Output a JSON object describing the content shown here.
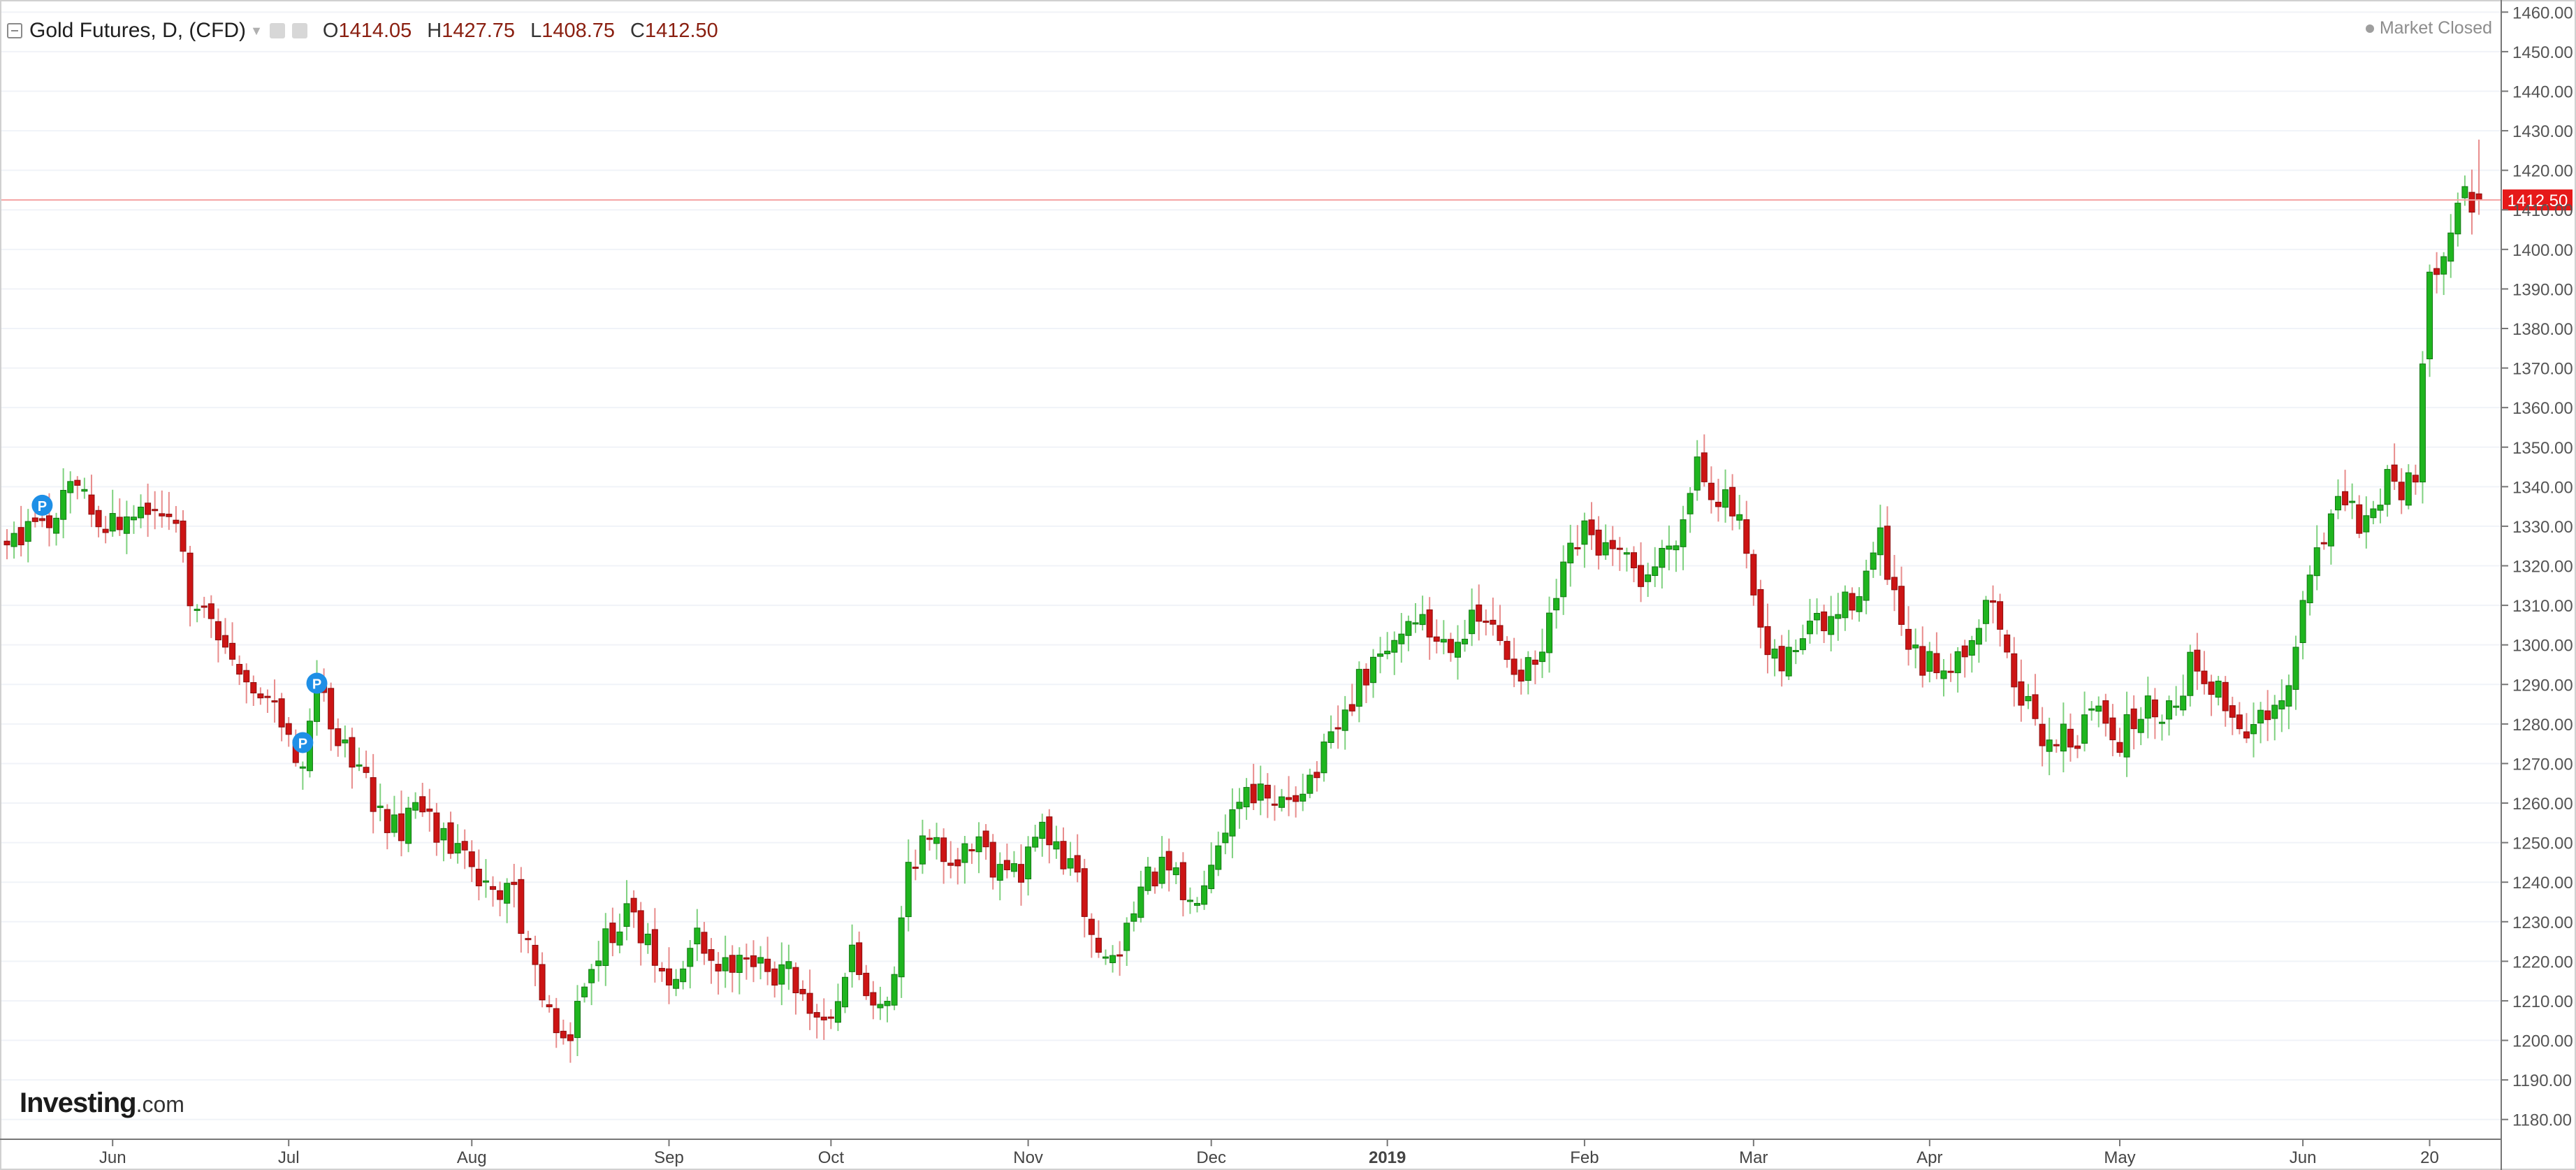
{
  "header": {
    "symbol": "Gold Futures, D, (CFD)",
    "open_label": "O",
    "open": "1414.05",
    "high_label": "H",
    "high": "1427.75",
    "low_label": "L",
    "low": "1408.75",
    "close_label": "C",
    "close": "1412.50",
    "market_status": "Market Closed"
  },
  "brand": {
    "name": "Investing",
    "suffix": ".com"
  },
  "colors": {
    "up": "#1fb51f",
    "down": "#cc1414",
    "up_wick": "#7fd17f",
    "down_wick": "#e88c8c",
    "last_price": "#e61919",
    "axis_text": "#555555",
    "grid": "#f0f3f8",
    "marker": "#1e8fe6"
  },
  "chart_data": {
    "type": "candlestick",
    "title": "Gold Futures, D, (CFD)",
    "xlabel": "",
    "ylabel": "",
    "ylim": [
      1175,
      1462
    ],
    "yticks": [
      1180,
      1190,
      1200,
      1210,
      1220,
      1230,
      1240,
      1250,
      1260,
      1270,
      1280,
      1290,
      1300,
      1310,
      1320,
      1330,
      1340,
      1350,
      1360,
      1370,
      1380,
      1390,
      1400,
      1410,
      1420,
      1430,
      1440,
      1450,
      1460
    ],
    "ytick_labels": [
      "1180.00",
      "1190.00",
      "1200.00",
      "1210.00",
      "1220.00",
      "1230.00",
      "1240.00",
      "1250.00",
      "1260.00",
      "1270.00",
      "1280.00",
      "1290.00",
      "1300.00",
      "1310.00",
      "1320.00",
      "1330.00",
      "1340.00",
      "1350.00",
      "1360.00",
      "1370.00",
      "1380.00",
      "1390.00",
      "1400.00",
      "1410.00",
      "1420.00",
      "1430.00",
      "1440.00",
      "1450.00",
      "1460.00"
    ],
    "xticks": [
      {
        "label": "Jun",
        "bar": 15
      },
      {
        "label": "Jul",
        "bar": 40
      },
      {
        "label": "Aug",
        "bar": 66
      },
      {
        "label": "Sep",
        "bar": 94
      },
      {
        "label": "Oct",
        "bar": 117
      },
      {
        "label": "Nov",
        "bar": 145
      },
      {
        "label": "Dec",
        "bar": 171
      },
      {
        "label": "2019",
        "bar": 196,
        "bold": true
      },
      {
        "label": "Feb",
        "bar": 224
      },
      {
        "label": "Mar",
        "bar": 248
      },
      {
        "label": "Apr",
        "bar": 273
      },
      {
        "label": "May",
        "bar": 300
      },
      {
        "label": "Jun",
        "bar": 326
      },
      {
        "label": "20",
        "bar": 344
      }
    ],
    "last_price": 1412.5,
    "last_price_label": "1412.50",
    "markers": [
      {
        "label": "P",
        "bar": 5,
        "price": 1330
      },
      {
        "label": "P",
        "bar": 44,
        "price": 1285
      },
      {
        "label": "P",
        "bar": 42,
        "price": 1270
      }
    ],
    "anchors": [
      [
        0,
        1326
      ],
      [
        3,
        1328
      ],
      [
        5,
        1329
      ],
      [
        8,
        1336
      ],
      [
        10,
        1339
      ],
      [
        12,
        1333
      ],
      [
        14,
        1332
      ],
      [
        16,
        1331
      ],
      [
        18,
        1332
      ],
      [
        20,
        1333
      ],
      [
        22,
        1332
      ],
      [
        24,
        1334
      ],
      [
        26,
        1313
      ],
      [
        28,
        1308
      ],
      [
        30,
        1303
      ],
      [
        32,
        1296
      ],
      [
        34,
        1292
      ],
      [
        36,
        1286
      ],
      [
        38,
        1282
      ],
      [
        40,
        1278
      ],
      [
        42,
        1267
      ],
      [
        44,
        1287
      ],
      [
        46,
        1281
      ],
      [
        48,
        1275
      ],
      [
        50,
        1270
      ],
      [
        52,
        1260
      ],
      [
        54,
        1256
      ],
      [
        56,
        1254
      ],
      [
        58,
        1257
      ],
      [
        60,
        1256
      ],
      [
        62,
        1251
      ],
      [
        64,
        1248
      ],
      [
        66,
        1242
      ],
      [
        68,
        1237
      ],
      [
        70,
        1238
      ],
      [
        72,
        1238
      ],
      [
        74,
        1222
      ],
      [
        76,
        1214
      ],
      [
        78,
        1200
      ],
      [
        80,
        1203
      ],
      [
        82,
        1215
      ],
      [
        84,
        1222
      ],
      [
        86,
        1228
      ],
      [
        88,
        1234
      ],
      [
        90,
        1226
      ],
      [
        92,
        1220
      ],
      [
        94,
        1213
      ],
      [
        96,
        1218
      ],
      [
        98,
        1226
      ],
      [
        100,
        1221
      ],
      [
        102,
        1218
      ],
      [
        104,
        1224
      ],
      [
        106,
        1220
      ],
      [
        108,
        1216
      ],
      [
        110,
        1219
      ],
      [
        112,
        1215
      ],
      [
        114,
        1209
      ],
      [
        116,
        1205
      ],
      [
        118,
        1212
      ],
      [
        120,
        1222
      ],
      [
        122,
        1213
      ],
      [
        124,
        1210
      ],
      [
        126,
        1215
      ],
      [
        128,
        1245
      ],
      [
        130,
        1250
      ],
      [
        132,
        1248
      ],
      [
        134,
        1247
      ],
      [
        136,
        1248
      ],
      [
        138,
        1252
      ],
      [
        140,
        1245
      ],
      [
        142,
        1246
      ],
      [
        144,
        1240
      ],
      [
        146,
        1254
      ],
      [
        148,
        1250
      ],
      [
        150,
        1246
      ],
      [
        152,
        1240
      ],
      [
        154,
        1226
      ],
      [
        156,
        1220
      ],
      [
        158,
        1222
      ],
      [
        160,
        1236
      ],
      [
        162,
        1240
      ],
      [
        164,
        1243
      ],
      [
        166,
        1240
      ],
      [
        168,
        1234
      ],
      [
        170,
        1243
      ],
      [
        172,
        1252
      ],
      [
        174,
        1258
      ],
      [
        176,
        1265
      ],
      [
        178,
        1262
      ],
      [
        180,
        1257
      ],
      [
        182,
        1262
      ],
      [
        184,
        1265
      ],
      [
        186,
        1268
      ],
      [
        188,
        1275
      ],
      [
        190,
        1282
      ],
      [
        192,
        1290
      ],
      [
        194,
        1294
      ],
      [
        196,
        1298
      ],
      [
        198,
        1304
      ],
      [
        200,
        1308
      ],
      [
        202,
        1303
      ],
      [
        204,
        1301
      ],
      [
        206,
        1303
      ],
      [
        208,
        1305
      ],
      [
        210,
        1306
      ],
      [
        212,
        1300
      ],
      [
        214,
        1295
      ],
      [
        216,
        1293
      ],
      [
        218,
        1297
      ],
      [
        220,
        1312
      ],
      [
        222,
        1322
      ],
      [
        224,
        1328
      ],
      [
        226,
        1325
      ],
      [
        228,
        1322
      ],
      [
        230,
        1320
      ],
      [
        232,
        1317
      ],
      [
        234,
        1320
      ],
      [
        236,
        1326
      ],
      [
        238,
        1332
      ],
      [
        240,
        1348
      ],
      [
        242,
        1340
      ],
      [
        244,
        1336
      ],
      [
        246,
        1330
      ],
      [
        248,
        1310
      ],
      [
        250,
        1296
      ],
      [
        252,
        1294
      ],
      [
        254,
        1300
      ],
      [
        256,
        1306
      ],
      [
        258,
        1304
      ],
      [
        260,
        1308
      ],
      [
        262,
        1312
      ],
      [
        264,
        1318
      ],
      [
        266,
        1326
      ],
      [
        268,
        1310
      ],
      [
        270,
        1298
      ],
      [
        272,
        1294
      ],
      [
        274,
        1295
      ],
      [
        276,
        1296
      ],
      [
        278,
        1300
      ],
      [
        280,
        1306
      ],
      [
        282,
        1312
      ],
      [
        284,
        1296
      ],
      [
        286,
        1288
      ],
      [
        288,
        1278
      ],
      [
        290,
        1276
      ],
      [
        292,
        1278
      ],
      [
        294,
        1276
      ],
      [
        296,
        1284
      ],
      [
        298,
        1282
      ],
      [
        300,
        1276
      ],
      [
        302,
        1281
      ],
      [
        304,
        1284
      ],
      [
        306,
        1284
      ],
      [
        308,
        1286
      ],
      [
        310,
        1296
      ],
      [
        312,
        1293
      ],
      [
        314,
        1288
      ],
      [
        316,
        1282
      ],
      [
        318,
        1279
      ],
      [
        320,
        1280
      ],
      [
        322,
        1281
      ],
      [
        324,
        1288
      ],
      [
        326,
        1310
      ],
      [
        328,
        1326
      ],
      [
        330,
        1332
      ],
      [
        332,
        1336
      ],
      [
        334,
        1330
      ],
      [
        336,
        1333
      ],
      [
        338,
        1344
      ],
      [
        340,
        1340
      ],
      [
        342,
        1345
      ],
      [
        344,
        1391
      ],
      [
        346,
        1402
      ],
      [
        348,
        1413
      ],
      [
        350,
        1413
      ],
      [
        351,
        1412.5
      ]
    ]
  }
}
